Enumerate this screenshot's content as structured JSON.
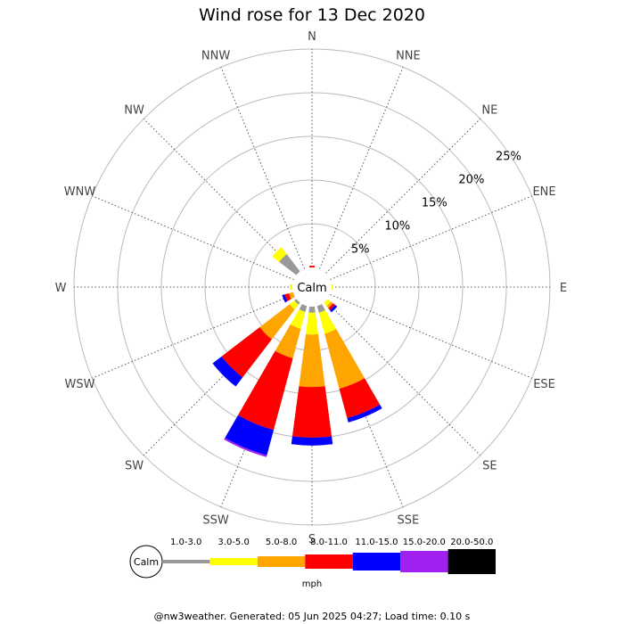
{
  "chart_data": {
    "type": "wind-rose",
    "title": "Wind rose for 13 Dec 2020",
    "center_label": "Calm",
    "directions": [
      "N",
      "NNE",
      "NE",
      "ENE",
      "E",
      "ESE",
      "SE",
      "SSE",
      "S",
      "SSW",
      "SW",
      "WSW",
      "W",
      "WNW",
      "NW",
      "NNW"
    ],
    "ring_labels": [
      "5%",
      "10%",
      "15%",
      "20%",
      "25%"
    ],
    "ring_values": [
      5,
      10,
      15,
      20,
      25
    ],
    "speed_bins": [
      {
        "label": "1.0-3.0",
        "color": "#999999"
      },
      {
        "label": "3.0-5.0",
        "color": "#ffff00"
      },
      {
        "label": "5.0-8.0",
        "color": "#ffa500"
      },
      {
        "label": "8.0-11.0",
        "color": "#ff0000"
      },
      {
        "label": "11.0-15.0",
        "color": "#0000ff"
      },
      {
        "label": "15.0-20.0",
        "color": "#a020f0"
      },
      {
        "label": "20.0-50.0",
        "color": "#000000"
      }
    ],
    "legend_unit": "mph",
    "frequencies_percent": {
      "N": [
        0,
        0,
        0,
        0.2,
        0,
        0,
        0
      ],
      "NNE": [
        0,
        0,
        0,
        0,
        0,
        0,
        0
      ],
      "NE": [
        0,
        0,
        0,
        0,
        0,
        0,
        0
      ],
      "ENE": [
        0,
        0,
        0,
        0,
        0,
        0,
        0
      ],
      "E": [
        0,
        0.2,
        0,
        0,
        0,
        0,
        0
      ],
      "ESE": [
        0,
        0,
        0,
        0,
        0,
        0,
        0
      ],
      "SE": [
        0,
        0.5,
        0.3,
        0.3,
        0.3,
        0,
        0
      ],
      "SSE": [
        0.8,
        2.5,
        6.5,
        3.5,
        0.5,
        0,
        0
      ],
      "S": [
        0.7,
        2.5,
        6.0,
        5.8,
        0.9,
        0,
        0
      ],
      "SSW": [
        0.7,
        2.0,
        3.5,
        8.5,
        3.0,
        0.2,
        0
      ],
      "SW": [
        0.3,
        0.7,
        4.3,
        5.5,
        1.3,
        0,
        0
      ],
      "WSW": [
        0,
        0,
        0.5,
        0.5,
        0.3,
        0,
        0
      ],
      "W": [
        0,
        0.3,
        0,
        0,
        0,
        0,
        0
      ],
      "WNW": [
        0,
        0,
        0,
        0,
        0,
        0,
        0
      ],
      "NW": [
        2.5,
        1.0,
        0,
        0,
        0,
        0,
        0
      ],
      "NNW": [
        0,
        0,
        0,
        0,
        0,
        0,
        0
      ]
    }
  },
  "footer": "@nw3weather. Generated: 05 Jun 2025 04:27; Load time: 0.10 s"
}
